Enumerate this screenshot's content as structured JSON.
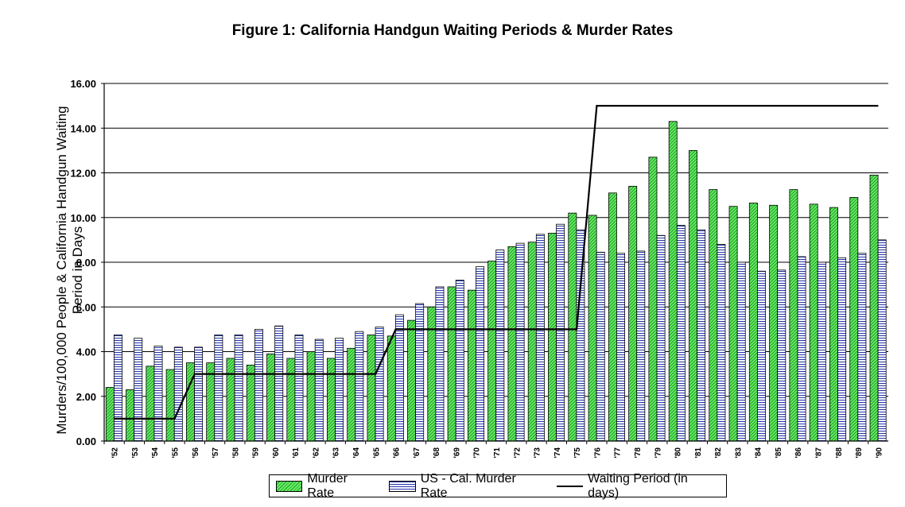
{
  "chart_data": {
    "type": "bar",
    "title": "Figure 1: California Handgun Waiting Periods & Murder Rates",
    "ylabel": "Murders/100,000 People & California Handgun Waiting Period in Days",
    "xlabel": "",
    "ylim": [
      0,
      16
    ],
    "yticks": [
      "0.00",
      "2.00",
      "4.00",
      "6.00",
      "8.00",
      "10.00",
      "12.00",
      "14.00",
      "16.00"
    ],
    "grid": true,
    "legend_position": "bottom",
    "categories": [
      "'52",
      "'53",
      "'54",
      "'55",
      "'56",
      "'57",
      "'58",
      "'59",
      "'60",
      "'61",
      "'62",
      "'63",
      "'64",
      "'65",
      "'66",
      "'67",
      "'68",
      "'69",
      "'70",
      "'71",
      "'72",
      "'73",
      "'74",
      "'75",
      "'76",
      "'77",
      "'78",
      "'79",
      "'80",
      "'81",
      "'82",
      "'83",
      "'84",
      "'85",
      "'86",
      "'87",
      "'88",
      "'89",
      "'90"
    ],
    "series": [
      {
        "name": "Murder Rate",
        "kind": "bar",
        "color": "#33cc33",
        "values": [
          2.4,
          2.3,
          3.35,
          3.2,
          3.5,
          3.5,
          3.7,
          3.4,
          3.9,
          3.7,
          4.0,
          3.7,
          4.15,
          4.75,
          4.7,
          5.4,
          6.0,
          6.9,
          6.75,
          8.05,
          8.7,
          8.9,
          9.3,
          10.2,
          10.1,
          11.1,
          11.4,
          12.7,
          14.3,
          13.0,
          11.25,
          10.5,
          10.65,
          10.55,
          11.25,
          10.6,
          10.45,
          10.9,
          11.9
        ]
      },
      {
        "name": "US - Cal. Murder Rate",
        "kind": "bar",
        "color": "#2233aa",
        "values": [
          4.75,
          4.6,
          4.25,
          4.2,
          4.2,
          4.75,
          4.75,
          5.0,
          5.15,
          4.75,
          4.55,
          4.6,
          4.9,
          5.1,
          5.65,
          6.15,
          6.9,
          7.2,
          7.8,
          8.55,
          8.85,
          9.25,
          9.7,
          9.45,
          8.45,
          8.4,
          8.5,
          9.2,
          9.65,
          9.45,
          8.8,
          8.0,
          7.6,
          7.65,
          8.25,
          8.0,
          8.2,
          8.4,
          9.0
        ]
      },
      {
        "name": "Waiting Period (in days)",
        "kind": "line",
        "color": "#000000",
        "values": [
          1,
          1,
          1,
          1,
          3,
          3,
          3,
          3,
          3,
          3,
          3,
          3,
          3,
          3,
          5,
          5,
          5,
          5,
          5,
          5,
          5,
          5,
          5,
          5,
          15,
          15,
          15,
          15,
          15,
          15,
          15,
          15,
          15,
          15,
          15,
          15,
          15,
          15,
          15
        ]
      }
    ]
  }
}
